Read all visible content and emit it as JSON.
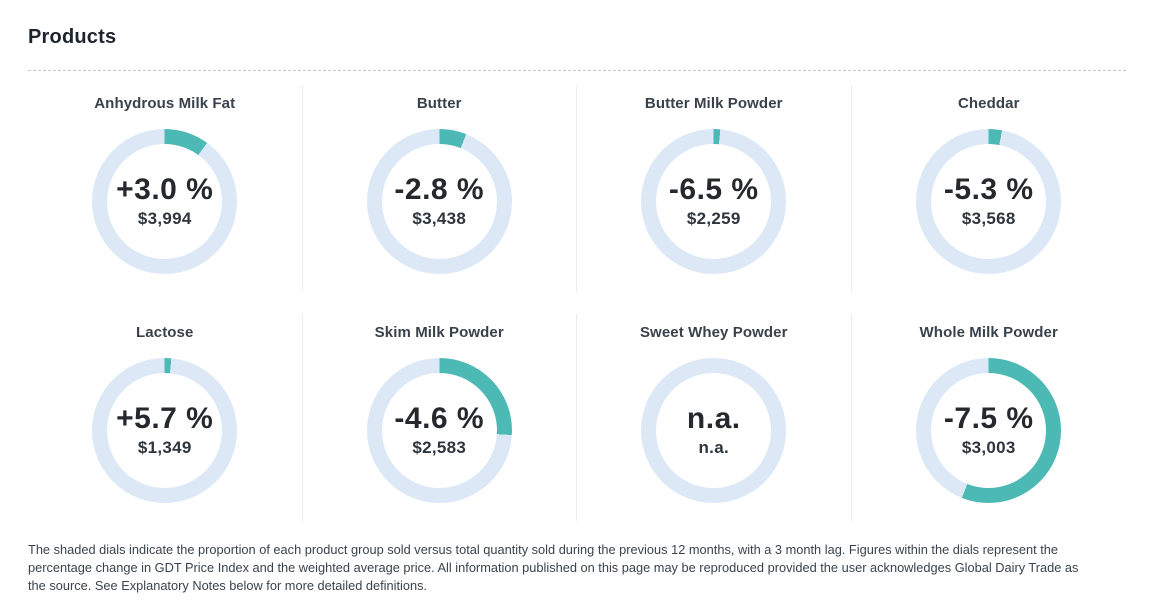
{
  "page": {
    "title": "Products",
    "footer": "The shaded dials indicate the proportion of each product group sold versus total quantity sold during the previous 12 months, with a 3 month lag. Figures within the dials represent the percentage change in GDT Price Index and the weighted average price. All information published on this page may be reproduced provided the user acknowledges Global Dairy Trade as the source. See Explanatory Notes below for more detailed definitions."
  },
  "colors": {
    "accent_teal": "#4cb9b4",
    "ring_blue": "#dce8f5",
    "heading_text": "#1d242e",
    "value_text": "#25292e"
  },
  "chart_data": {
    "type": "pie",
    "subtype": "donut-dials",
    "title": "Products",
    "legend_position": "none",
    "note": "Shaded (teal) arc = proportion of product group sold vs total quantity sold over previous 12 months; center shows % change in GDT Price Index and weighted average price (USD).",
    "dials": [
      {
        "name": "Anhydrous Milk Fat",
        "change": "+3.0 %",
        "price": "$3,994",
        "proportion_pct": 10
      },
      {
        "name": "Butter",
        "change": "-2.8 %",
        "price": "$3,438",
        "proportion_pct": 6
      },
      {
        "name": "Butter Milk Powder",
        "change": "-6.5 %",
        "price": "$2,259",
        "proportion_pct": 1.5
      },
      {
        "name": "Cheddar",
        "change": "-5.3 %",
        "price": "$3,568",
        "proportion_pct": 3
      },
      {
        "name": "Lactose",
        "change": "+5.7 %",
        "price": "$1,349",
        "proportion_pct": 1.5
      },
      {
        "name": "Skim Milk Powder",
        "change": "-4.6 %",
        "price": "$2,583",
        "proportion_pct": 26
      },
      {
        "name": "Sweet Whey Powder",
        "change": "n.a.",
        "price": "n.a.",
        "proportion_pct": 0
      },
      {
        "name": "Whole Milk Powder",
        "change": "-7.5 %",
        "price": "$3,003",
        "proportion_pct": 56
      }
    ]
  }
}
